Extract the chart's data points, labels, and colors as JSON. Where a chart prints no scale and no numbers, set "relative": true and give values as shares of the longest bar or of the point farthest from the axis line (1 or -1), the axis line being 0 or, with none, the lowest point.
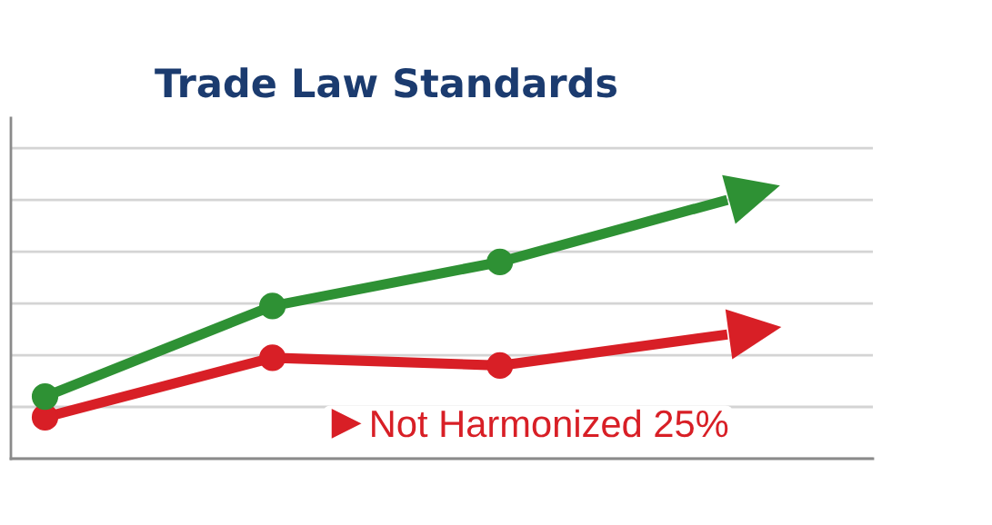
{
  "chart_data": {
    "type": "line",
    "title": "Trade Law Standards",
    "categories": [
      null,
      null,
      null,
      null
    ],
    "relative": true,
    "series": [
      {
        "color": "#2e9134",
        "values": [
          0.24,
          0.59,
          0.76,
          1.0
        ]
      },
      {
        "name": "Not Harmonized 25%",
        "color": "#d81f26",
        "values": [
          0.16,
          0.39,
          0.36,
          0.48
        ]
      }
    ],
    "marker": "circle",
    "grid": "y",
    "legend": "bottom"
  }
}
